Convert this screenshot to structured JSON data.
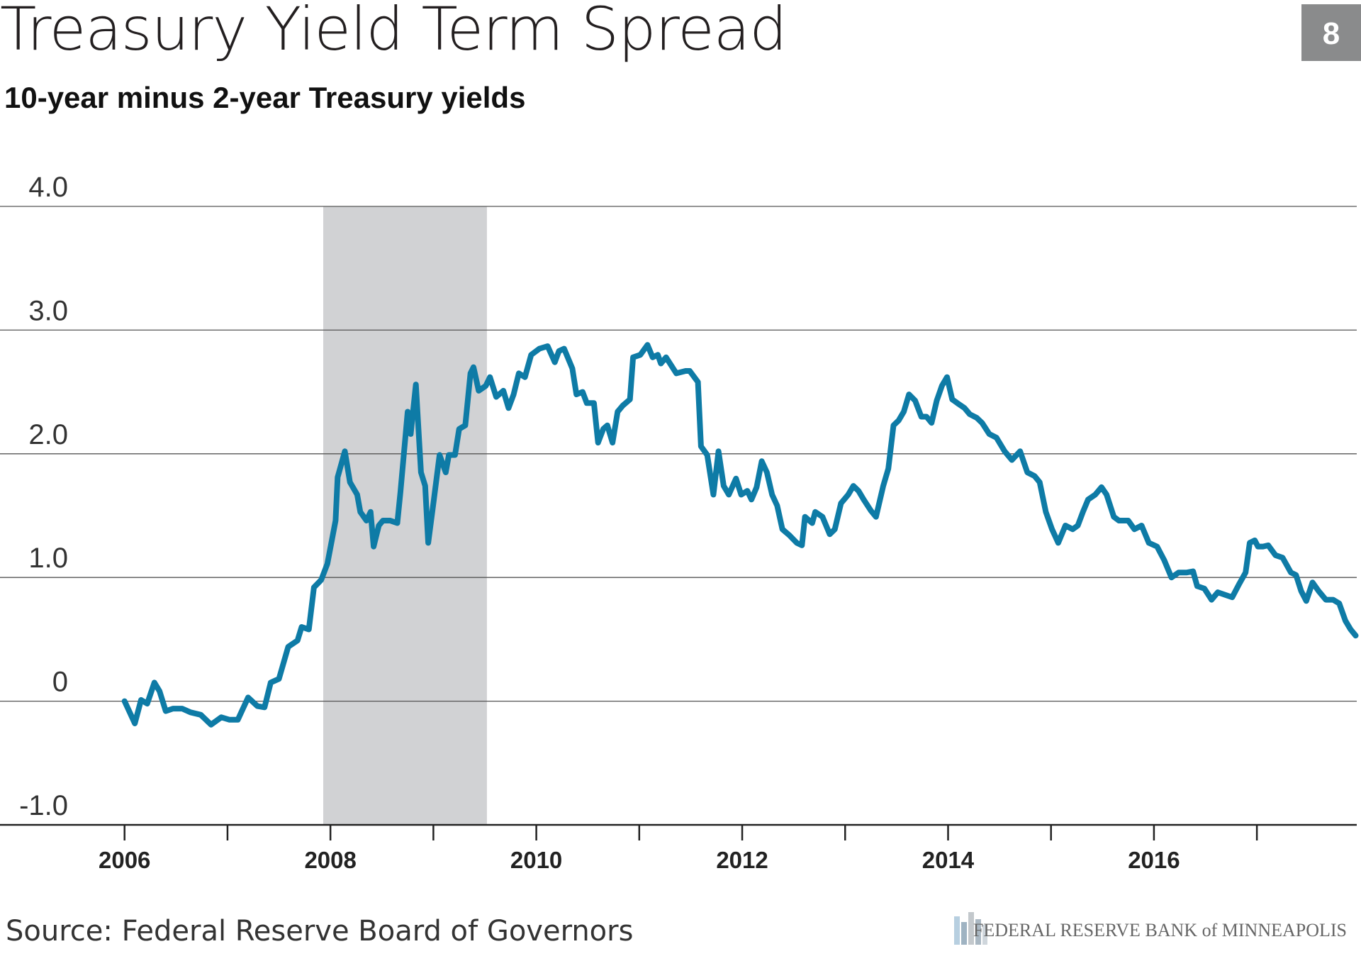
{
  "chart_data": {
    "type": "line",
    "title": "Treasury Yield Term Spread",
    "subtitle": "10-year minus 2-year Treasury yields",
    "page_number": "8",
    "source": "Source: Federal Reserve Board of Governors",
    "publisher": "FEDERAL RESERVE BANK of MINNEAPOLIS",
    "xlim": [
      2004.79,
      2017.97
    ],
    "ylim": [
      -1,
      4
    ],
    "xticks": [
      2006,
      2008,
      2010,
      2012,
      2014,
      2016
    ],
    "minor_xticks": [
      2007,
      2009,
      2011,
      2013,
      2015,
      2017
    ],
    "yticks": [
      {
        "value": -1,
        "label": "-1.0"
      },
      0,
      {
        "value": 1,
        "label": "1.0"
      },
      {
        "value": 2,
        "label": "2.0"
      },
      {
        "value": 3,
        "label": "3.0"
      },
      {
        "value": 4,
        "label": "4.0"
      }
    ],
    "grid": true,
    "recession": {
      "start": 2007.93,
      "end": 2009.52,
      "color": "#d1d2d4"
    },
    "series": [
      {
        "color": "#0e7ba6",
        "x": [
          2006.0,
          2006.05,
          2006.1,
          2006.16,
          2006.22,
          2006.29,
          2006.34,
          2006.4,
          2006.47,
          2006.56,
          2006.64,
          2006.74,
          2006.84,
          2006.94,
          2007.02,
          2007.1,
          2007.2,
          2007.29,
          2007.36,
          2007.42,
          2007.5,
          2007.59,
          2007.68,
          2007.72,
          2007.79,
          2007.84,
          2007.91,
          2007.97,
          2008.05,
          2008.07,
          2008.14,
          2008.19,
          2008.26,
          2008.29,
          2008.35,
          2008.39,
          2008.42,
          2008.47,
          2008.51,
          2008.58,
          2008.65,
          2008.68,
          2008.75,
          2008.78,
          2008.83,
          2008.88,
          2008.92,
          2008.95,
          2009.0,
          2009.06,
          2009.12,
          2009.15,
          2009.21,
          2009.25,
          2009.31,
          2009.36,
          2009.39,
          2009.44,
          2009.51,
          2009.55,
          2009.61,
          2009.68,
          2009.73,
          2009.78,
          2009.83,
          2009.89,
          2009.95,
          2010.03,
          2010.11,
          2010.18,
          2010.22,
          2010.27,
          2010.35,
          2010.39,
          2010.45,
          2010.49,
          2010.56,
          2010.6,
          2010.65,
          2010.69,
          2010.74,
          2010.79,
          2010.84,
          2010.91,
          2010.94,
          2011.01,
          2011.08,
          2011.13,
          2011.18,
          2011.21,
          2011.26,
          2011.36,
          2011.45,
          2011.49,
          2011.57,
          2011.6,
          2011.66,
          2011.72,
          2011.77,
          2011.82,
          2011.87,
          2011.94,
          2011.99,
          2012.05,
          2012.09,
          2012.14,
          2012.19,
          2012.24,
          2012.29,
          2012.34,
          2012.39,
          2012.46,
          2012.53,
          2012.58,
          2012.61,
          2012.68,
          2012.71,
          2012.78,
          2012.85,
          2012.9,
          2012.96,
          2013.03,
          2013.08,
          2013.13,
          2013.18,
          2013.25,
          2013.3,
          2013.37,
          2013.42,
          2013.47,
          2013.52,
          2013.57,
          2013.62,
          2013.68,
          2013.74,
          2013.79,
          2013.84,
          2013.89,
          2013.94,
          2013.99,
          2014.04,
          2014.09,
          2014.16,
          2014.21,
          2014.28,
          2014.33,
          2014.4,
          2014.47,
          2014.55,
          2014.62,
          2014.7,
          2014.77,
          2014.84,
          2014.89,
          2014.95,
          2015.01,
          2015.07,
          2015.14,
          2015.21,
          2015.26,
          2015.31,
          2015.36,
          2015.43,
          2015.49,
          2015.54,
          2015.61,
          2015.66,
          2015.75,
          2015.81,
          2015.88,
          2015.95,
          2016.03,
          2016.1,
          2016.17,
          2016.24,
          2016.32,
          2016.38,
          2016.42,
          2016.49,
          2016.56,
          2016.62,
          2016.69,
          2016.76,
          2016.83,
          2016.89,
          2016.93,
          2016.98,
          2017.01,
          2017.06,
          2017.11,
          2017.18,
          2017.25,
          2017.33,
          2017.38,
          2017.43,
          2017.48,
          2017.54,
          2017.6,
          2017.67,
          2017.74,
          2017.8,
          2017.86,
          2017.91,
          2017.96
        ],
        "values": [
          0.0,
          -0.09,
          -0.18,
          0.01,
          -0.02,
          0.15,
          0.08,
          -0.08,
          -0.06,
          -0.06,
          -0.09,
          -0.11,
          -0.19,
          -0.13,
          -0.15,
          -0.15,
          0.03,
          -0.04,
          -0.05,
          0.15,
          0.18,
          0.44,
          0.49,
          0.6,
          0.58,
          0.92,
          0.98,
          1.11,
          1.46,
          1.81,
          2.02,
          1.77,
          1.67,
          1.53,
          1.46,
          1.53,
          1.25,
          1.42,
          1.46,
          1.46,
          1.44,
          1.69,
          2.34,
          2.16,
          2.56,
          1.85,
          1.74,
          1.28,
          1.6,
          1.99,
          1.85,
          1.99,
          1.99,
          2.2,
          2.23,
          2.65,
          2.7,
          2.51,
          2.55,
          2.62,
          2.46,
          2.51,
          2.37,
          2.48,
          2.65,
          2.62,
          2.8,
          2.85,
          2.87,
          2.74,
          2.83,
          2.85,
          2.69,
          2.48,
          2.5,
          2.41,
          2.41,
          2.09,
          2.2,
          2.23,
          2.09,
          2.34,
          2.39,
          2.44,
          2.78,
          2.8,
          2.88,
          2.78,
          2.8,
          2.73,
          2.78,
          2.65,
          2.67,
          2.67,
          2.58,
          2.06,
          1.99,
          1.67,
          2.02,
          1.74,
          1.67,
          1.8,
          1.67,
          1.7,
          1.63,
          1.73,
          1.94,
          1.85,
          1.67,
          1.58,
          1.39,
          1.34,
          1.28,
          1.26,
          1.49,
          1.44,
          1.53,
          1.49,
          1.35,
          1.39,
          1.6,
          1.67,
          1.74,
          1.7,
          1.63,
          1.54,
          1.49,
          1.74,
          1.88,
          2.23,
          2.27,
          2.34,
          2.48,
          2.43,
          2.3,
          2.3,
          2.25,
          2.43,
          2.55,
          2.62,
          2.44,
          2.41,
          2.37,
          2.32,
          2.29,
          2.25,
          2.16,
          2.13,
          2.02,
          1.95,
          2.02,
          1.85,
          1.82,
          1.77,
          1.53,
          1.39,
          1.28,
          1.42,
          1.39,
          1.42,
          1.53,
          1.63,
          1.67,
          1.73,
          1.67,
          1.49,
          1.46,
          1.46,
          1.39,
          1.42,
          1.28,
          1.25,
          1.14,
          1.0,
          1.04,
          1.04,
          1.05,
          0.93,
          0.91,
          0.82,
          0.88,
          0.86,
          0.84,
          0.95,
          1.04,
          1.28,
          1.3,
          1.25,
          1.25,
          1.26,
          1.18,
          1.16,
          1.04,
          1.02,
          0.89,
          0.81,
          0.96,
          0.89,
          0.82,
          0.82,
          0.79,
          0.65,
          0.58,
          0.53
        ]
      }
    ]
  }
}
